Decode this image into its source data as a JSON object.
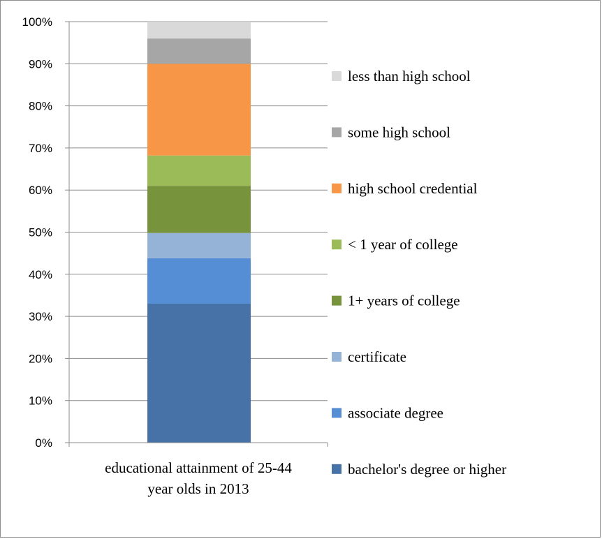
{
  "chart_data": {
    "type": "bar",
    "stacked": true,
    "percent_axis": true,
    "categories": [
      "educational attainment of 25-44 year olds in 2013"
    ],
    "category_label_lines": [
      "educational attainment of 25-44",
      "year olds in 2013"
    ],
    "ylim": [
      0,
      100
    ],
    "yticks": [
      "0%",
      "10%",
      "20%",
      "30%",
      "40%",
      "50%",
      "60%",
      "70%",
      "80%",
      "90%",
      "100%"
    ],
    "grid": true,
    "legend_position": "right",
    "series": [
      {
        "name": "bachelor's degree or higher",
        "values": [
          33.0
        ],
        "color": "#4672A8"
      },
      {
        "name": "associate degree",
        "values": [
          10.8
        ],
        "color": "#558ED5"
      },
      {
        "name": "certificate",
        "values": [
          6.0
        ],
        "color": "#95B3D7"
      },
      {
        "name": "1+ years of college",
        "values": [
          11.2
        ],
        "color": "#77933C"
      },
      {
        "name": "< 1 year of college",
        "values": [
          7.2
        ],
        "color": "#9BBB59"
      },
      {
        "name": "high school credential",
        "values": [
          21.8
        ],
        "color": "#F79646"
      },
      {
        "name": "some high school",
        "values": [
          6.0
        ],
        "color": "#A6A6A6"
      },
      {
        "name": "less than high school",
        "values": [
          4.0
        ],
        "color": "#D9D9D9"
      }
    ]
  }
}
